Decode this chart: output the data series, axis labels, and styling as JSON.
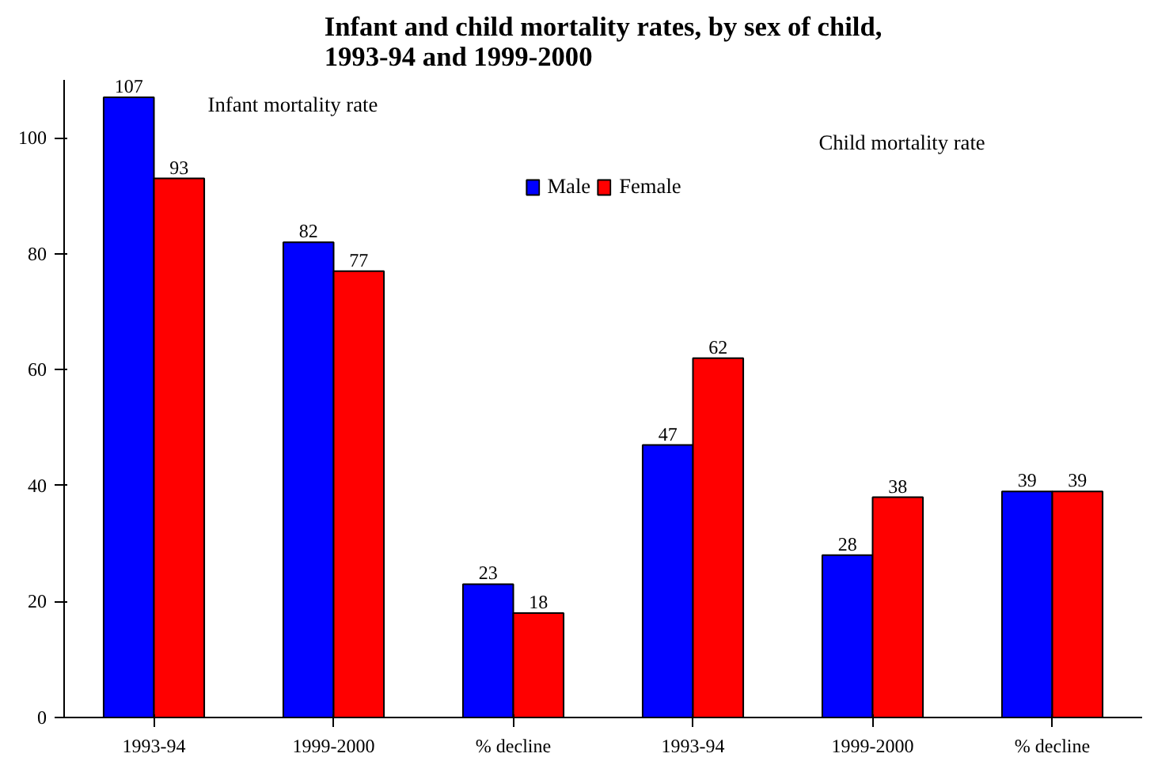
{
  "chart_data": {
    "type": "bar",
    "title": "Infant and child mortality rates, by sex of child,\n1993-94 and 1999-2000",
    "categories": [
      "1993-94",
      "1999-2000",
      "% decline",
      "1993-94",
      "1999-2000",
      "% decline"
    ],
    "series": [
      {
        "name": "Male",
        "color": "#0000ff",
        "values": [
          107,
          82,
          23,
          47,
          28,
          39
        ]
      },
      {
        "name": "Female",
        "color": "#ff0000",
        "values": [
          93,
          77,
          18,
          62,
          38,
          39
        ]
      }
    ],
    "ylim": [
      0,
      110
    ],
    "yticks": [
      0,
      20,
      40,
      60,
      80,
      100
    ],
    "grid": false,
    "legend": "top",
    "data_labels": true,
    "annotations": [
      "Infant mortality rate",
      "Child mortality rate"
    ]
  }
}
